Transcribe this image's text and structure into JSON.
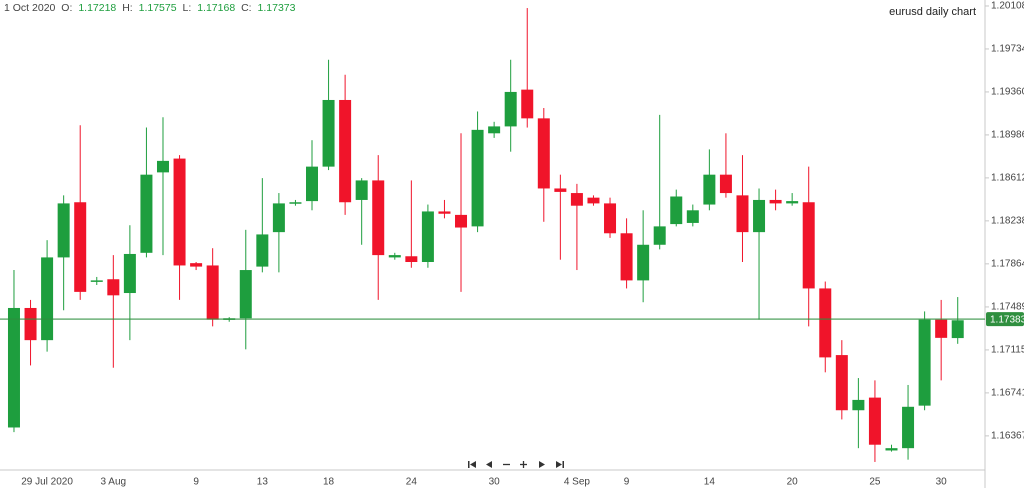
{
  "chart_data": {
    "type": "candlestick",
    "title": "eurusd daily chart",
    "crosshair_date": "1 Oct 2020",
    "ohlc_labels": [
      "O:",
      "H:",
      "L:",
      "C:"
    ],
    "categories": [
      null,
      null,
      "29 Jul 2020",
      null,
      null,
      null,
      "3 Aug",
      null,
      null,
      null,
      null,
      "9",
      null,
      null,
      null,
      "13",
      null,
      null,
      null,
      "18",
      null,
      null,
      null,
      null,
      "24",
      null,
      null,
      null,
      null,
      "30",
      null,
      null,
      null,
      null,
      "4 Sep",
      null,
      null,
      "9",
      null,
      null,
      null,
      null,
      "14",
      null,
      null,
      null,
      null,
      "20",
      null,
      null,
      null,
      null,
      "25",
      null,
      null,
      null,
      "30",
      null
    ],
    "open": [
      1.1644,
      1.1748,
      1.172,
      1.1792,
      1.184,
      1.1771,
      1.1773,
      1.1761,
      1.1796,
      1.1866,
      1.1878,
      1.1787,
      1.1785,
      1.1738,
      1.1739,
      1.1784,
      1.1814,
      1.1839,
      1.1841,
      1.1871,
      1.1929,
      1.1842,
      1.1859,
      1.1792,
      1.1793,
      1.1788,
      1.1832,
      1.1829,
      1.1819,
      1.19,
      1.1906,
      1.1938,
      1.1913,
      1.1852,
      1.1848,
      1.1844,
      1.1839,
      1.1813,
      1.1772,
      1.1803,
      1.1821,
      1.1822,
      1.1838,
      1.1864,
      1.1846,
      1.1814,
      1.1842,
      1.1839,
      1.184,
      1.1765,
      1.1707,
      1.1659,
      1.167,
      1.1624,
      1.1626,
      1.1663,
      1.1738,
      1.17218
    ],
    "high": [
      1.1781,
      1.1755,
      1.1807,
      1.1846,
      1.1907,
      1.1775,
      1.1794,
      1.182,
      1.1905,
      1.1914,
      1.1881,
      1.1788,
      1.18,
      1.174,
      1.1816,
      1.1861,
      1.1848,
      1.1842,
      1.1894,
      1.1964,
      1.1951,
      1.1861,
      1.1881,
      1.1796,
      1.1859,
      1.1838,
      1.1842,
      1.19,
      1.1919,
      1.191,
      1.1964,
      1.2009,
      1.1922,
      1.1864,
      1.1856,
      1.1846,
      1.1844,
      1.1826,
      1.1833,
      1.1916,
      1.1851,
      1.1838,
      1.1886,
      1.19,
      1.1881,
      1.1852,
      1.1851,
      1.1848,
      1.1871,
      1.1771,
      1.172,
      1.1687,
      1.1685,
      1.1629,
      1.1681,
      1.1745,
      1.1755,
      1.17575
    ],
    "low": [
      1.164,
      1.1698,
      1.171,
      1.1746,
      1.1755,
      1.1768,
      1.1696,
      1.172,
      1.1792,
      1.1794,
      1.1755,
      1.1781,
      1.1732,
      1.1736,
      1.1712,
      1.1779,
      1.1779,
      1.1837,
      1.1833,
      1.1868,
      1.1829,
      1.1803,
      1.1755,
      1.179,
      1.1783,
      1.1783,
      1.1826,
      1.1762,
      1.1814,
      1.1896,
      1.1884,
      1.1905,
      1.1823,
      1.179,
      1.1781,
      1.1837,
      1.1809,
      1.1765,
      1.1753,
      1.1799,
      1.1819,
      1.1819,
      1.1833,
      1.1844,
      1.1788,
      1.1738,
      1.1833,
      1.1837,
      1.1732,
      1.1692,
      1.1651,
      1.1626,
      1.1614,
      1.1623,
      1.1616,
      1.1659,
      1.1685,
      1.17168
    ],
    "close": [
      1.1748,
      1.172,
      1.1792,
      1.1839,
      1.1762,
      1.1772,
      1.1759,
      1.1795,
      1.1864,
      1.1876,
      1.1785,
      1.1784,
      1.1738,
      1.1739,
      1.1781,
      1.1812,
      1.1839,
      1.184,
      1.1871,
      1.1929,
      1.184,
      1.1859,
      1.1794,
      1.1794,
      1.1788,
      1.1832,
      1.183,
      1.1818,
      1.1903,
      1.1906,
      1.1936,
      1.1913,
      1.1852,
      1.1849,
      1.1837,
      1.1839,
      1.1813,
      1.1772,
      1.1803,
      1.1819,
      1.1845,
      1.1833,
      1.1864,
      1.1848,
      1.1814,
      1.1842,
      1.1839,
      1.1841,
      1.1765,
      1.1705,
      1.1659,
      1.1668,
      1.1629,
      1.1626,
      1.1662,
      1.1738,
      1.1722,
      1.17373
    ],
    "up_color": "#1e9e3e",
    "down_color": "#f0142a",
    "last_price": 1.17383,
    "last_price_color": "#2f8f3f",
    "ylim": [
      1.1607,
      1.2016
    ],
    "yticks": [
      1.16367,
      1.16741,
      1.17115,
      1.17489,
      1.17864,
      1.18238,
      1.18612,
      1.18986,
      {
        "value": 1.1936,
        "label": "1.19360"
      },
      1.19734,
      1.20108
    ],
    "grid": false
  }
}
